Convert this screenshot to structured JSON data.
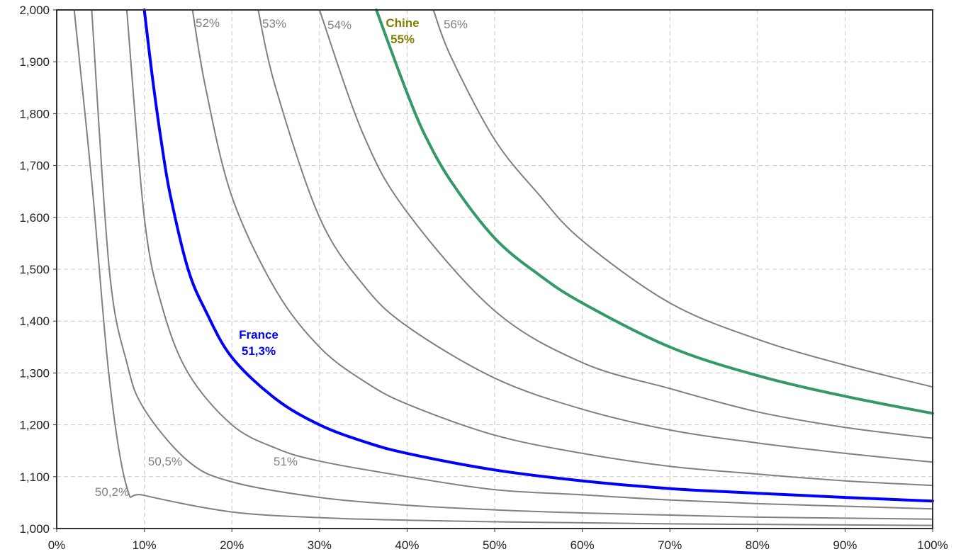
{
  "chart_data": {
    "type": "line",
    "title": "",
    "xlabel": "",
    "ylabel": "",
    "xlim": [
      0,
      1
    ],
    "ylim": [
      1.0,
      2.0
    ],
    "x_ticks": [
      "0%",
      "10%",
      "20%",
      "30%",
      "40%",
      "50%",
      "60%",
      "70%",
      "80%",
      "90%",
      "100%"
    ],
    "y_ticks": [
      "1,000",
      "1,100",
      "1,200",
      "1,300",
      "1,400",
      "1,500",
      "1,600",
      "1,700",
      "1,800",
      "1,900",
      "2,000"
    ],
    "grid": true,
    "series": [
      {
        "name": "50,2%",
        "label": "50,2%",
        "color": "#808080",
        "highlight": false,
        "values": [
          [
            0.02,
            2.0
          ],
          [
            0.04,
            1.67
          ],
          [
            0.06,
            1.29
          ],
          [
            0.08,
            1.08
          ],
          [
            0.1,
            1.064
          ],
          [
            0.2,
            1.032
          ],
          [
            0.3,
            1.021
          ],
          [
            0.4,
            1.016
          ],
          [
            0.5,
            1.013
          ],
          [
            0.6,
            1.011
          ],
          [
            0.7,
            1.009
          ],
          [
            0.8,
            1.008
          ],
          [
            0.9,
            1.007
          ],
          [
            1.0,
            1.006
          ]
        ]
      },
      {
        "name": "50,5%",
        "label": "50,5%",
        "color": "#808080",
        "highlight": false,
        "values": [
          [
            0.04,
            2.0
          ],
          [
            0.06,
            1.5
          ],
          [
            0.08,
            1.32
          ],
          [
            0.1,
            1.23
          ],
          [
            0.15,
            1.13
          ],
          [
            0.2,
            1.09
          ],
          [
            0.3,
            1.06
          ],
          [
            0.4,
            1.045
          ],
          [
            0.5,
            1.036
          ],
          [
            0.6,
            1.03
          ],
          [
            0.7,
            1.026
          ],
          [
            0.8,
            1.022
          ],
          [
            0.9,
            1.02
          ],
          [
            1.0,
            1.018
          ]
        ]
      },
      {
        "name": "51%",
        "label": "51%",
        "color": "#808080",
        "highlight": false,
        "values": [
          [
            0.08,
            2.0
          ],
          [
            0.1,
            1.6
          ],
          [
            0.12,
            1.43
          ],
          [
            0.15,
            1.3
          ],
          [
            0.2,
            1.2
          ],
          [
            0.25,
            1.155
          ],
          [
            0.3,
            1.13
          ],
          [
            0.4,
            1.1
          ],
          [
            0.5,
            1.075
          ],
          [
            0.6,
            1.065
          ],
          [
            0.7,
            1.055
          ],
          [
            0.8,
            1.048
          ],
          [
            0.9,
            1.043
          ],
          [
            1.0,
            1.038
          ]
        ]
      },
      {
        "name": "France",
        "label": "France\n51,3%",
        "color": "#0000ff",
        "highlight": true,
        "values": [
          [
            0.1,
            2.0
          ],
          [
            0.11,
            1.86
          ],
          [
            0.12,
            1.74
          ],
          [
            0.13,
            1.64
          ],
          [
            0.15,
            1.5
          ],
          [
            0.17,
            1.42
          ],
          [
            0.2,
            1.33
          ],
          [
            0.25,
            1.25
          ],
          [
            0.3,
            1.2
          ],
          [
            0.35,
            1.168
          ],
          [
            0.4,
            1.145
          ],
          [
            0.5,
            1.113
          ],
          [
            0.6,
            1.092
          ],
          [
            0.7,
            1.077
          ],
          [
            0.8,
            1.068
          ],
          [
            0.9,
            1.06
          ],
          [
            1.0,
            1.053
          ]
        ]
      },
      {
        "name": "52%",
        "label": "52%",
        "color": "#808080",
        "highlight": false,
        "values": [
          [
            0.155,
            2.0
          ],
          [
            0.17,
            1.85
          ],
          [
            0.2,
            1.64
          ],
          [
            0.25,
            1.46
          ],
          [
            0.3,
            1.35
          ],
          [
            0.35,
            1.285
          ],
          [
            0.4,
            1.24
          ],
          [
            0.5,
            1.18
          ],
          [
            0.6,
            1.145
          ],
          [
            0.7,
            1.12
          ],
          [
            0.8,
            1.105
          ],
          [
            0.9,
            1.092
          ],
          [
            1.0,
            1.083
          ]
        ]
      },
      {
        "name": "53%",
        "label": "53%",
        "color": "#808080",
        "highlight": false,
        "values": [
          [
            0.23,
            2.0
          ],
          [
            0.25,
            1.85
          ],
          [
            0.3,
            1.6
          ],
          [
            0.35,
            1.47
          ],
          [
            0.4,
            1.39
          ],
          [
            0.5,
            1.29
          ],
          [
            0.6,
            1.23
          ],
          [
            0.7,
            1.19
          ],
          [
            0.8,
            1.165
          ],
          [
            0.9,
            1.145
          ],
          [
            1.0,
            1.128
          ]
        ]
      },
      {
        "name": "54%",
        "label": "54%",
        "color": "#808080",
        "highlight": false,
        "values": [
          [
            0.3,
            2.0
          ],
          [
            0.35,
            1.76
          ],
          [
            0.4,
            1.61
          ],
          [
            0.5,
            1.42
          ],
          [
            0.6,
            1.32
          ],
          [
            0.7,
            1.27
          ],
          [
            0.8,
            1.225
          ],
          [
            0.9,
            1.195
          ],
          [
            1.0,
            1.174
          ]
        ]
      },
      {
        "name": "Chine",
        "label": "Chine\n55%",
        "color": "#339966",
        "highlight": true,
        "values": [
          [
            0.365,
            2.0
          ],
          [
            0.38,
            1.93
          ],
          [
            0.4,
            1.84
          ],
          [
            0.42,
            1.76
          ],
          [
            0.45,
            1.67
          ],
          [
            0.5,
            1.56
          ],
          [
            0.55,
            1.49
          ],
          [
            0.6,
            1.435
          ],
          [
            0.7,
            1.35
          ],
          [
            0.8,
            1.295
          ],
          [
            0.9,
            1.255
          ],
          [
            1.0,
            1.222
          ]
        ]
      },
      {
        "name": "56%",
        "label": "56%",
        "color": "#808080",
        "highlight": false,
        "values": [
          [
            0.43,
            2.0
          ],
          [
            0.45,
            1.91
          ],
          [
            0.5,
            1.75
          ],
          [
            0.55,
            1.645
          ],
          [
            0.6,
            1.555
          ],
          [
            0.7,
            1.435
          ],
          [
            0.8,
            1.365
          ],
          [
            0.9,
            1.315
          ],
          [
            1.0,
            1.273
          ]
        ]
      }
    ]
  }
}
